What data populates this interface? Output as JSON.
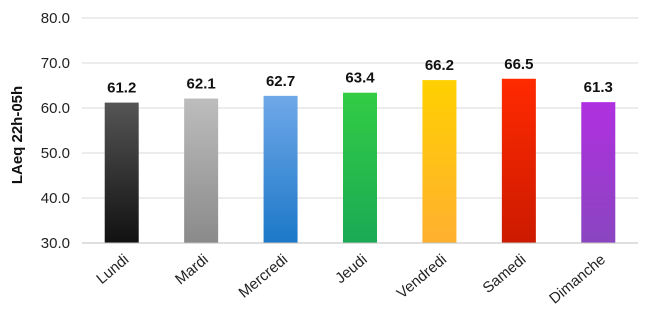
{
  "chart_data": {
    "type": "bar",
    "ylabel": "LAeq 22h-05h",
    "xlabel": "",
    "ylim": [
      30.0,
      80.0
    ],
    "yticks": [
      "30.0",
      "40.0",
      "50.0",
      "60.0",
      "70.0",
      "80.0"
    ],
    "grid": true,
    "categories": [
      "Lundi",
      "Mardi",
      "Mercredi",
      "Jeudi",
      "Vendredi",
      "Samedi",
      "Dimanche"
    ],
    "values": [
      61.2,
      62.1,
      62.7,
      63.4,
      66.2,
      66.5,
      61.3
    ],
    "value_labels": [
      "61.2",
      "62.1",
      "62.7",
      "63.4",
      "66.2",
      "66.5",
      "61.3"
    ],
    "bar_colors": [
      [
        "#555555",
        "#111111"
      ],
      [
        "#bdbdbd",
        "#8a8a8a"
      ],
      [
        "#6fa8e8",
        "#1c78c8"
      ],
      [
        "#33cc44",
        "#1aaa55"
      ],
      [
        "#ffd000",
        "#ffb030"
      ],
      [
        "#ff2a00",
        "#cc1a00"
      ],
      [
        "#b030e0",
        "#8a45c0"
      ]
    ]
  }
}
